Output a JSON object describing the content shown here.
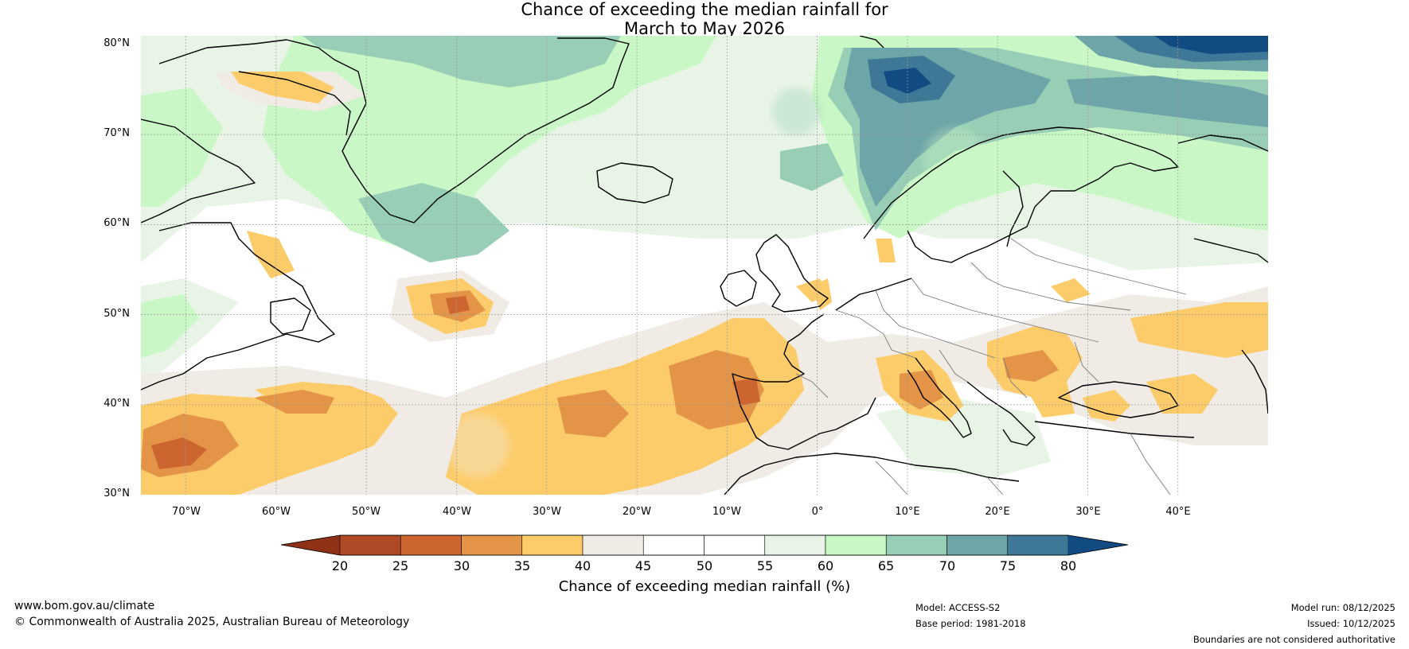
{
  "title": {
    "line1": "Chance of exceeding the median rainfall for",
    "line2": "March to May 2026"
  },
  "map": {
    "region": "North Atlantic and Europe",
    "lat_range": [
      30,
      80
    ],
    "lon_range": [
      -75,
      50
    ],
    "lat_labels": [
      "80°N",
      "70°N",
      "60°N",
      "50°N",
      "40°N",
      "30°N"
    ],
    "lon_labels": [
      "70°W",
      "60°W",
      "50°W",
      "40°W",
      "30°W",
      "20°W",
      "10°W",
      "0°",
      "10°E",
      "20°E",
      "30°E",
      "40°E"
    ]
  },
  "colorbar": {
    "ticks": [
      "20",
      "25",
      "30",
      "35",
      "40",
      "45",
      "50",
      "55",
      "60",
      "65",
      "70",
      "75",
      "80"
    ],
    "colors": [
      "#8e3116",
      "#b04a26",
      "#cc6530",
      "#e39447",
      "#fdcc6a",
      "#f0ebe5",
      "#ffffff",
      "#ffffff",
      "#e8f5e6",
      "#c9f8c6",
      "#97ceb5",
      "#6ea5a8",
      "#3f7897",
      "#124b82"
    ],
    "title": "Chance of exceeding median rainfall (%)"
  },
  "footer": {
    "website": "www.bom.gov.au/climate",
    "copyright": "© Commonwealth of Australia 2025, Australian Bureau of Meteorology",
    "model": "Model: ACCESS-S2",
    "base_period": "Base period: 1981-2018",
    "model_run": "Model run: 08/12/2025",
    "issued": "Issued: 10/12/2025",
    "disclaimer": "Boundaries are not considered authoritative"
  }
}
